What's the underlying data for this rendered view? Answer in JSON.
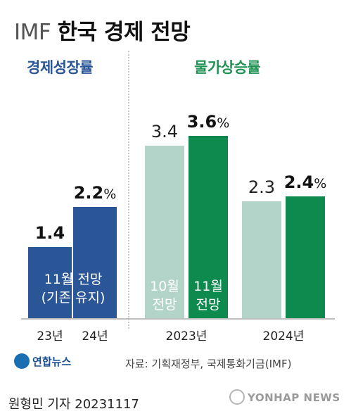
{
  "header": {
    "title_prefix": "IMF",
    "title_main": "한국 경제 전망"
  },
  "colors": {
    "blue": "#2a5597",
    "green_dark": "#0e8a4f",
    "green_light": "#b3d5c9",
    "section_blue": "#2a5597",
    "section_green": "#1f9254"
  },
  "chart_data": [
    {
      "type": "bar",
      "title": "경제성장률",
      "categories": [
        "23년",
        "24년"
      ],
      "series": [
        {
          "values": [
            1.4,
            2.2
          ]
        }
      ],
      "labels": [
        "1.4",
        "2.2"
      ],
      "unit": "%",
      "notes": [
        "11월 전망",
        "(기존 유지)"
      ],
      "ylim": [
        0,
        4
      ]
    },
    {
      "type": "bar",
      "title": "물가상승률",
      "categories": [
        "2023년",
        "2024년"
      ],
      "series": [
        {
          "name": "10월 전망",
          "values": [
            3.4,
            2.3
          ]
        },
        {
          "name": "11월 전망",
          "values": [
            3.6,
            2.4
          ]
        }
      ],
      "labels": [
        [
          "3.4",
          "2.3"
        ],
        [
          "3.6",
          "2.4"
        ]
      ],
      "unit": "%",
      "series_label_lines": [
        [
          "10월",
          "전망"
        ],
        [
          "11월",
          "전망"
        ]
      ],
      "ylim": [
        0,
        4
      ]
    }
  ],
  "footer": {
    "logo_text": "연합뉴스",
    "source": "자료: 기획재정부, 국제통화기금(IMF)",
    "credit": "원형민 기자  20231117",
    "watermark": "YONHAP NEWS"
  }
}
